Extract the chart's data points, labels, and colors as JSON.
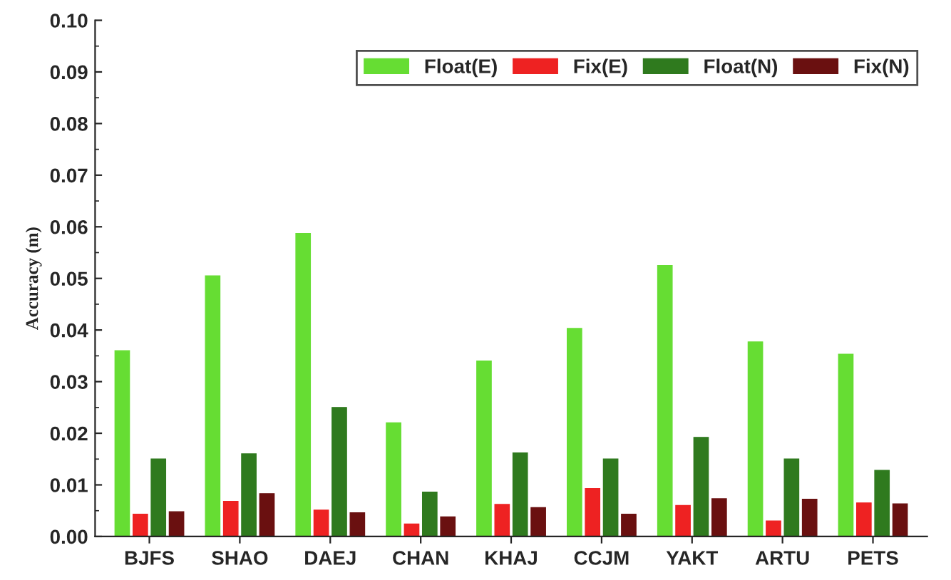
{
  "chart_data": {
    "type": "bar",
    "ylabel": "Accuracy (m)",
    "categories": [
      "BJFS",
      "SHAO",
      "DAEJ",
      "CHAN",
      "KHAJ",
      "CCJM",
      "YAKT",
      "ARTU",
      "PETS"
    ],
    "series": [
      {
        "name": "Float(E)",
        "color": "#66dd33",
        "values": [
          0.036,
          0.0505,
          0.0587,
          0.022,
          0.034,
          0.0403,
          0.0525,
          0.0377,
          0.0353
        ]
      },
      {
        "name": "Fix(E)",
        "color": "#ee2222",
        "values": [
          0.0043,
          0.0068,
          0.0051,
          0.0024,
          0.0062,
          0.0093,
          0.006,
          0.003,
          0.0065
        ]
      },
      {
        "name": "Float(N)",
        "color": "#2f7a1e",
        "values": [
          0.015,
          0.016,
          0.025,
          0.0086,
          0.0162,
          0.015,
          0.0192,
          0.015,
          0.0128
        ]
      },
      {
        "name": "Fix(N)",
        "color": "#6a1010",
        "values": [
          0.0048,
          0.0083,
          0.0046,
          0.0038,
          0.0056,
          0.0043,
          0.0073,
          0.0072,
          0.0063
        ]
      }
    ],
    "ylim": [
      0,
      0.1
    ],
    "yticks": [
      {
        "value": 0,
        "label": "0.00"
      },
      {
        "value": 0.01,
        "label": "0.01"
      },
      {
        "value": 0.02,
        "label": "0.02"
      },
      {
        "value": 0.03,
        "label": "0.03"
      },
      {
        "value": 0.04,
        "label": "0.04"
      },
      {
        "value": 0.05,
        "label": "0.05"
      },
      {
        "value": 0.06,
        "label": "0.06"
      },
      {
        "value": 0.07,
        "label": "0.07"
      },
      {
        "value": 0.08,
        "label": "0.08"
      },
      {
        "value": 0.09,
        "label": "0.09"
      },
      {
        "value": 0.1,
        "label": "0.10"
      }
    ],
    "grid": false,
    "legend": "top right"
  }
}
